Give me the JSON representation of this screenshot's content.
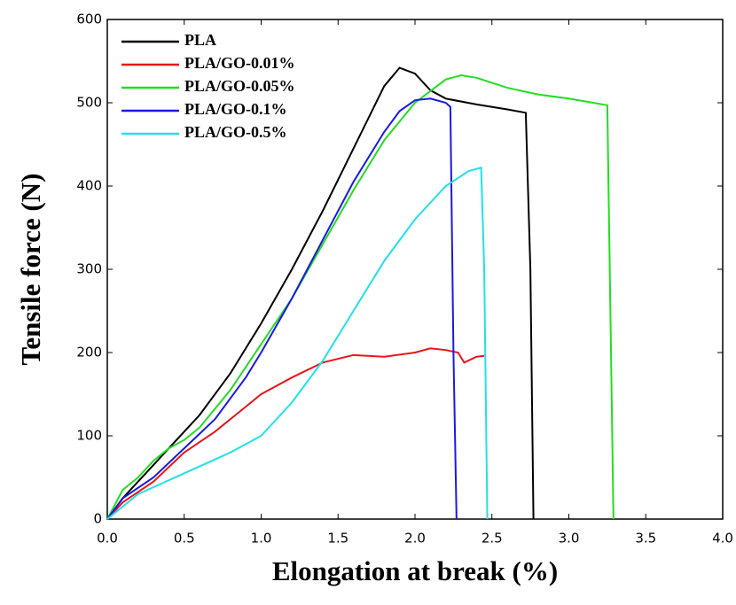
{
  "chart_data": {
    "type": "line",
    "xlabel": "Elongation at break (%)",
    "ylabel": "Tensile force (N)",
    "xlim": [
      0,
      4
    ],
    "ylim": [
      0,
      600
    ],
    "xticks": [
      {
        "value": 0,
        "label": "0.0"
      },
      0.5,
      {
        "value": 1,
        "label": "1.0"
      },
      1.5,
      {
        "value": 2,
        "label": "2.0"
      },
      2.5,
      {
        "value": 3,
        "label": "3.0"
      },
      3.5,
      {
        "value": 4,
        "label": "4.0"
      }
    ],
    "yticks": [
      0,
      100,
      200,
      300,
      400,
      500,
      600
    ],
    "grid": false,
    "legend": "upper left",
    "series": [
      {
        "name": "PLA",
        "color": "#000000",
        "x": [
          0,
          0.1,
          0.2,
          0.3,
          0.4,
          0.5,
          0.6,
          0.8,
          1.0,
          1.2,
          1.4,
          1.6,
          1.8,
          1.9,
          2.0,
          2.1,
          2.2,
          2.4,
          2.6,
          2.72,
          2.75,
          2.77
        ],
        "values": [
          0,
          25,
          45,
          65,
          85,
          105,
          125,
          175,
          235,
          300,
          370,
          445,
          520,
          542,
          535,
          515,
          505,
          498,
          492,
          488,
          300,
          0
        ]
      },
      {
        "name": "PLA/GO-0.01%",
        "color": "#e8141c",
        "x": [
          0,
          0.1,
          0.3,
          0.5,
          0.7,
          0.9,
          1.0,
          1.2,
          1.4,
          1.6,
          1.8,
          2.0,
          2.1,
          2.2,
          2.28,
          2.32,
          2.4,
          2.45
        ],
        "values": [
          0,
          20,
          45,
          80,
          105,
          135,
          150,
          170,
          188,
          197,
          195,
          200,
          205,
          203,
          200,
          188,
          195,
          196
        ]
      },
      {
        "name": "PLA/GO-0.05%",
        "color": "#22dd22",
        "x": [
          0,
          0.1,
          0.2,
          0.3,
          0.4,
          0.5,
          0.6,
          0.8,
          1.0,
          1.2,
          1.4,
          1.6,
          1.8,
          2.0,
          2.2,
          2.3,
          2.4,
          2.6,
          2.8,
          3.0,
          3.25,
          3.27,
          3.29
        ],
        "values": [
          0,
          35,
          50,
          70,
          85,
          95,
          110,
          155,
          210,
          265,
          330,
          395,
          455,
          500,
          528,
          533,
          530,
          518,
          510,
          505,
          497,
          250,
          0
        ]
      },
      {
        "name": "PLA/GO-0.1%",
        "color": "#1a1ae0",
        "x": [
          0,
          0.1,
          0.3,
          0.5,
          0.7,
          0.9,
          1.0,
          1.2,
          1.4,
          1.6,
          1.8,
          1.9,
          2.0,
          2.1,
          2.2,
          2.23,
          2.25,
          2.27
        ],
        "values": [
          0,
          25,
          50,
          85,
          120,
          170,
          200,
          265,
          335,
          405,
          465,
          490,
          503,
          505,
          500,
          495,
          200,
          0
        ]
      },
      {
        "name": "PLA/GO-0.5%",
        "color": "#22e0e8",
        "x": [
          0,
          0.2,
          0.5,
          0.8,
          1.0,
          1.2,
          1.4,
          1.6,
          1.8,
          2.0,
          2.2,
          2.35,
          2.43,
          2.45,
          2.47
        ],
        "values": [
          0,
          30,
          55,
          80,
          100,
          140,
          190,
          250,
          310,
          360,
          400,
          418,
          422,
          300,
          0
        ]
      }
    ]
  }
}
